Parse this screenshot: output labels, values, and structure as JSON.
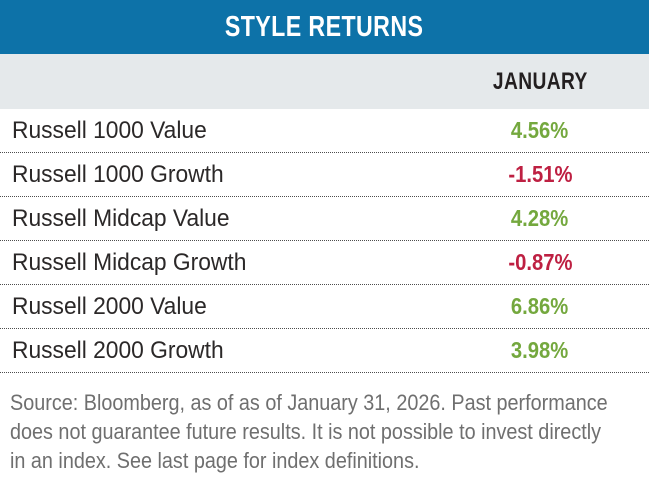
{
  "banner": {
    "title": "STYLE RETURNS"
  },
  "table": {
    "column_header": "JANUARY",
    "rows": [
      {
        "label": "Russell 1000 Value",
        "value": "4.56%"
      },
      {
        "label": "Russell 1000 Growth",
        "value": "-1.51%"
      },
      {
        "label": "Russell Midcap Value",
        "value": "4.28%"
      },
      {
        "label": "Russell Midcap Growth",
        "value": "-0.87%"
      },
      {
        "label": "Russell 2000 Value",
        "value": "6.86%"
      },
      {
        "label": "Russell 2000 Growth",
        "value": "3.98%"
      }
    ]
  },
  "footnote": {
    "lines": [
      "Source: Bloomberg, as of as of January 31, 2026. Past performance",
      "does not guarantee future results. It is not possible to invest directly",
      "in an index. See last page for index definitions."
    ]
  },
  "colors": {
    "banner_blue": "#0d72a8",
    "header_bar_gray": "#e5e9eb",
    "positive_green": "#74a83e",
    "negative_red": "#be2042",
    "label_text": "#2b2828",
    "footnote_gray": "#6f6f6f",
    "dotted_divider": "#4d4d4d"
  }
}
